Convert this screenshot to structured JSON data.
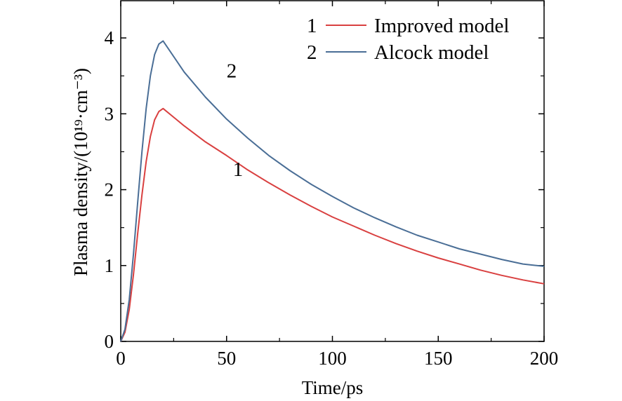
{
  "chart_data": {
    "type": "line",
    "xlabel": "Time/ps",
    "ylabel": "Plasma density/(10¹⁹·cm⁻³)",
    "xlim": [
      0,
      200
    ],
    "ylim": [
      0,
      4.5
    ],
    "x_ticks": [
      0,
      50,
      100,
      150,
      200
    ],
    "y_ticks": [
      0,
      1,
      2,
      3,
      4
    ],
    "grid": false,
    "legend_position": "top-right",
    "series": [
      {
        "id": "1",
        "name": "Improved model",
        "color": "#d94040",
        "x": [
          0,
          2,
          4,
          6,
          8,
          10,
          12,
          14,
          16,
          18,
          20,
          30,
          40,
          50,
          60,
          70,
          80,
          90,
          100,
          110,
          120,
          130,
          140,
          150,
          160,
          170,
          180,
          190,
          200
        ],
        "y": [
          0,
          0.12,
          0.42,
          0.88,
          1.42,
          1.93,
          2.37,
          2.7,
          2.92,
          3.03,
          3.07,
          2.84,
          2.63,
          2.45,
          2.26,
          2.09,
          1.93,
          1.78,
          1.64,
          1.52,
          1.4,
          1.29,
          1.19,
          1.1,
          1.02,
          0.94,
          0.87,
          0.81,
          0.76
        ]
      },
      {
        "id": "2",
        "name": "Alcock model",
        "color": "#4a6e96",
        "x": [
          0,
          2,
          4,
          6,
          8,
          10,
          12,
          14,
          16,
          18,
          20,
          30,
          40,
          50,
          60,
          70,
          80,
          90,
          100,
          110,
          120,
          130,
          140,
          150,
          160,
          170,
          180,
          190,
          200
        ],
        "y": [
          0,
          0.16,
          0.55,
          1.15,
          1.83,
          2.5,
          3.07,
          3.5,
          3.78,
          3.92,
          3.96,
          3.55,
          3.22,
          2.93,
          2.68,
          2.45,
          2.25,
          2.07,
          1.91,
          1.76,
          1.63,
          1.51,
          1.4,
          1.31,
          1.22,
          1.15,
          1.08,
          1.02,
          0.99
        ]
      }
    ],
    "annotations": [
      {
        "text": "2",
        "series": "2",
        "x": 50,
        "y": 3.48
      },
      {
        "text": "1",
        "series": "1",
        "x": 53,
        "y": 2.18
      }
    ]
  }
}
